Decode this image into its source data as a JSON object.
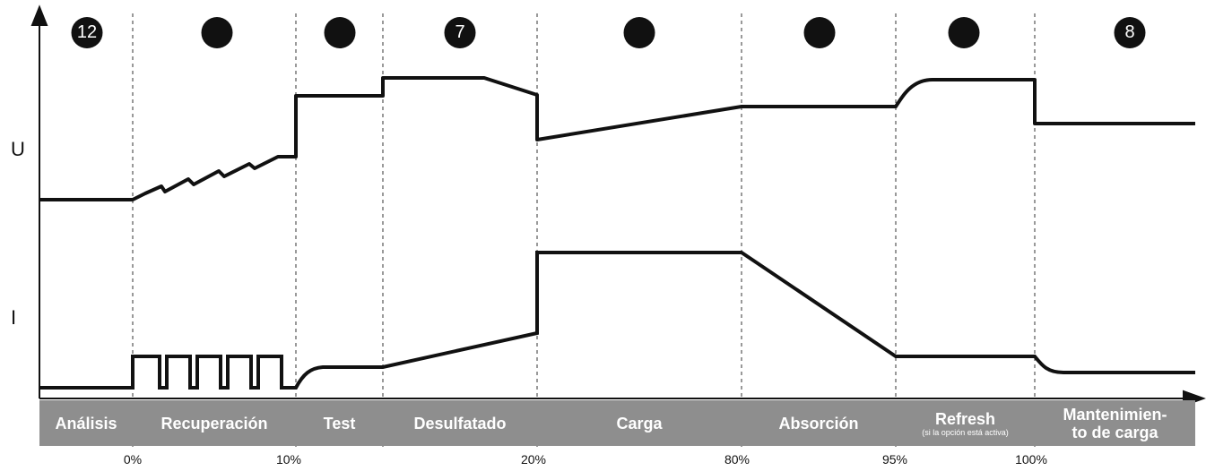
{
  "axes": {
    "voltage_label": "U",
    "current_label": "I"
  },
  "stages": [
    {
      "name": "Análisis",
      "sub": "",
      "badge": "12"
    },
    {
      "name": "Recuperación",
      "sub": "",
      "badge": ""
    },
    {
      "name": "Test",
      "sub": "",
      "badge": ""
    },
    {
      "name": "Desulfatado",
      "sub": "",
      "badge": "7"
    },
    {
      "name": "Carga",
      "sub": "",
      "badge": ""
    },
    {
      "name": "Absorción",
      "sub": "",
      "badge": ""
    },
    {
      "name": "Refresh",
      "sub": "(si la opción está activa)",
      "badge": ""
    },
    {
      "name": "Mantenimien-\nto de carga",
      "sub": "",
      "badge": "8"
    }
  ],
  "percent_marks": [
    "0%",
    "10%",
    "20%",
    "80%",
    "95%",
    "100%"
  ]
}
